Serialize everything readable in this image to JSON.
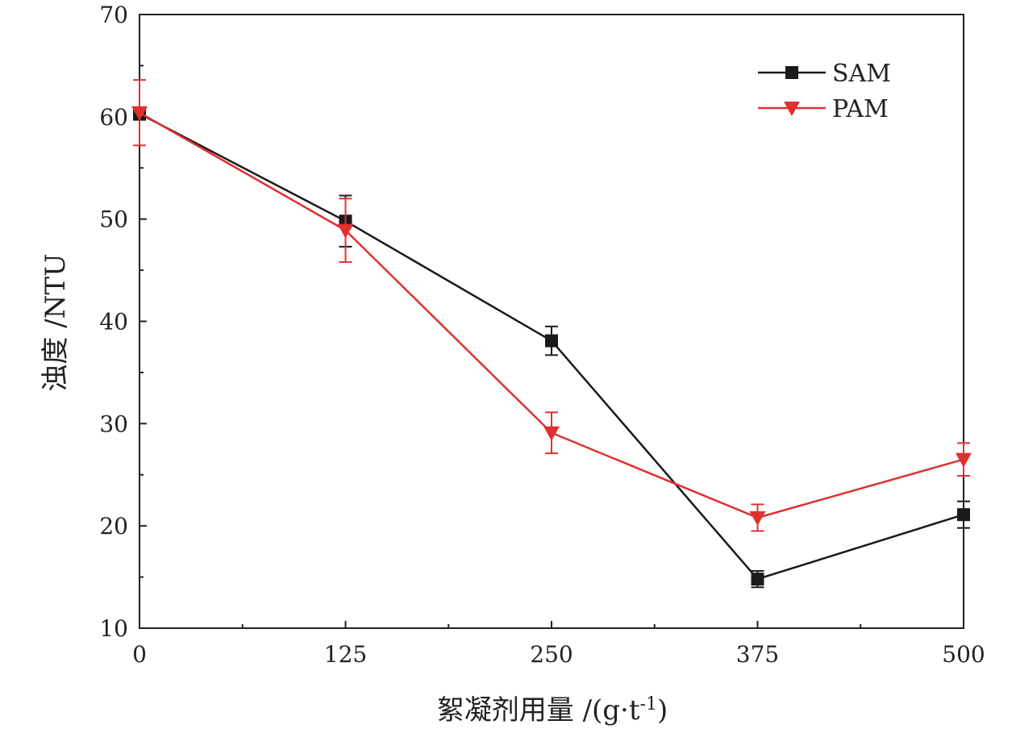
{
  "chart_data": {
    "type": "line",
    "x": [
      0,
      125,
      250,
      375,
      500
    ],
    "xlabel": "絮凝剂用量 /(g·t",
    "xlabel_sup": "-1",
    "xlabel_suffix": ")",
    "ylabel": "浊度 /NTU",
    "xlim": [
      0,
      500
    ],
    "ylim": [
      10,
      70
    ],
    "x_ticks": [
      0,
      125,
      250,
      375,
      500
    ],
    "y_ticks": [
      10,
      20,
      30,
      40,
      50,
      60,
      70
    ],
    "grid": false,
    "legend_position": "top-right",
    "series": [
      {
        "name": "SAM",
        "marker": "square",
        "color": "#1a1a1a",
        "values": [
          60.3,
          49.8,
          38.1,
          14.8,
          21.1
        ],
        "errors": [
          0.6,
          2.5,
          1.4,
          0.8,
          1.3
        ]
      },
      {
        "name": "PAM",
        "marker": "triangle-down",
        "color": "#e03030",
        "values": [
          60.4,
          48.9,
          29.1,
          20.8,
          26.5
        ],
        "errors": [
          3.2,
          3.1,
          2.0,
          1.3,
          1.6
        ]
      }
    ]
  }
}
